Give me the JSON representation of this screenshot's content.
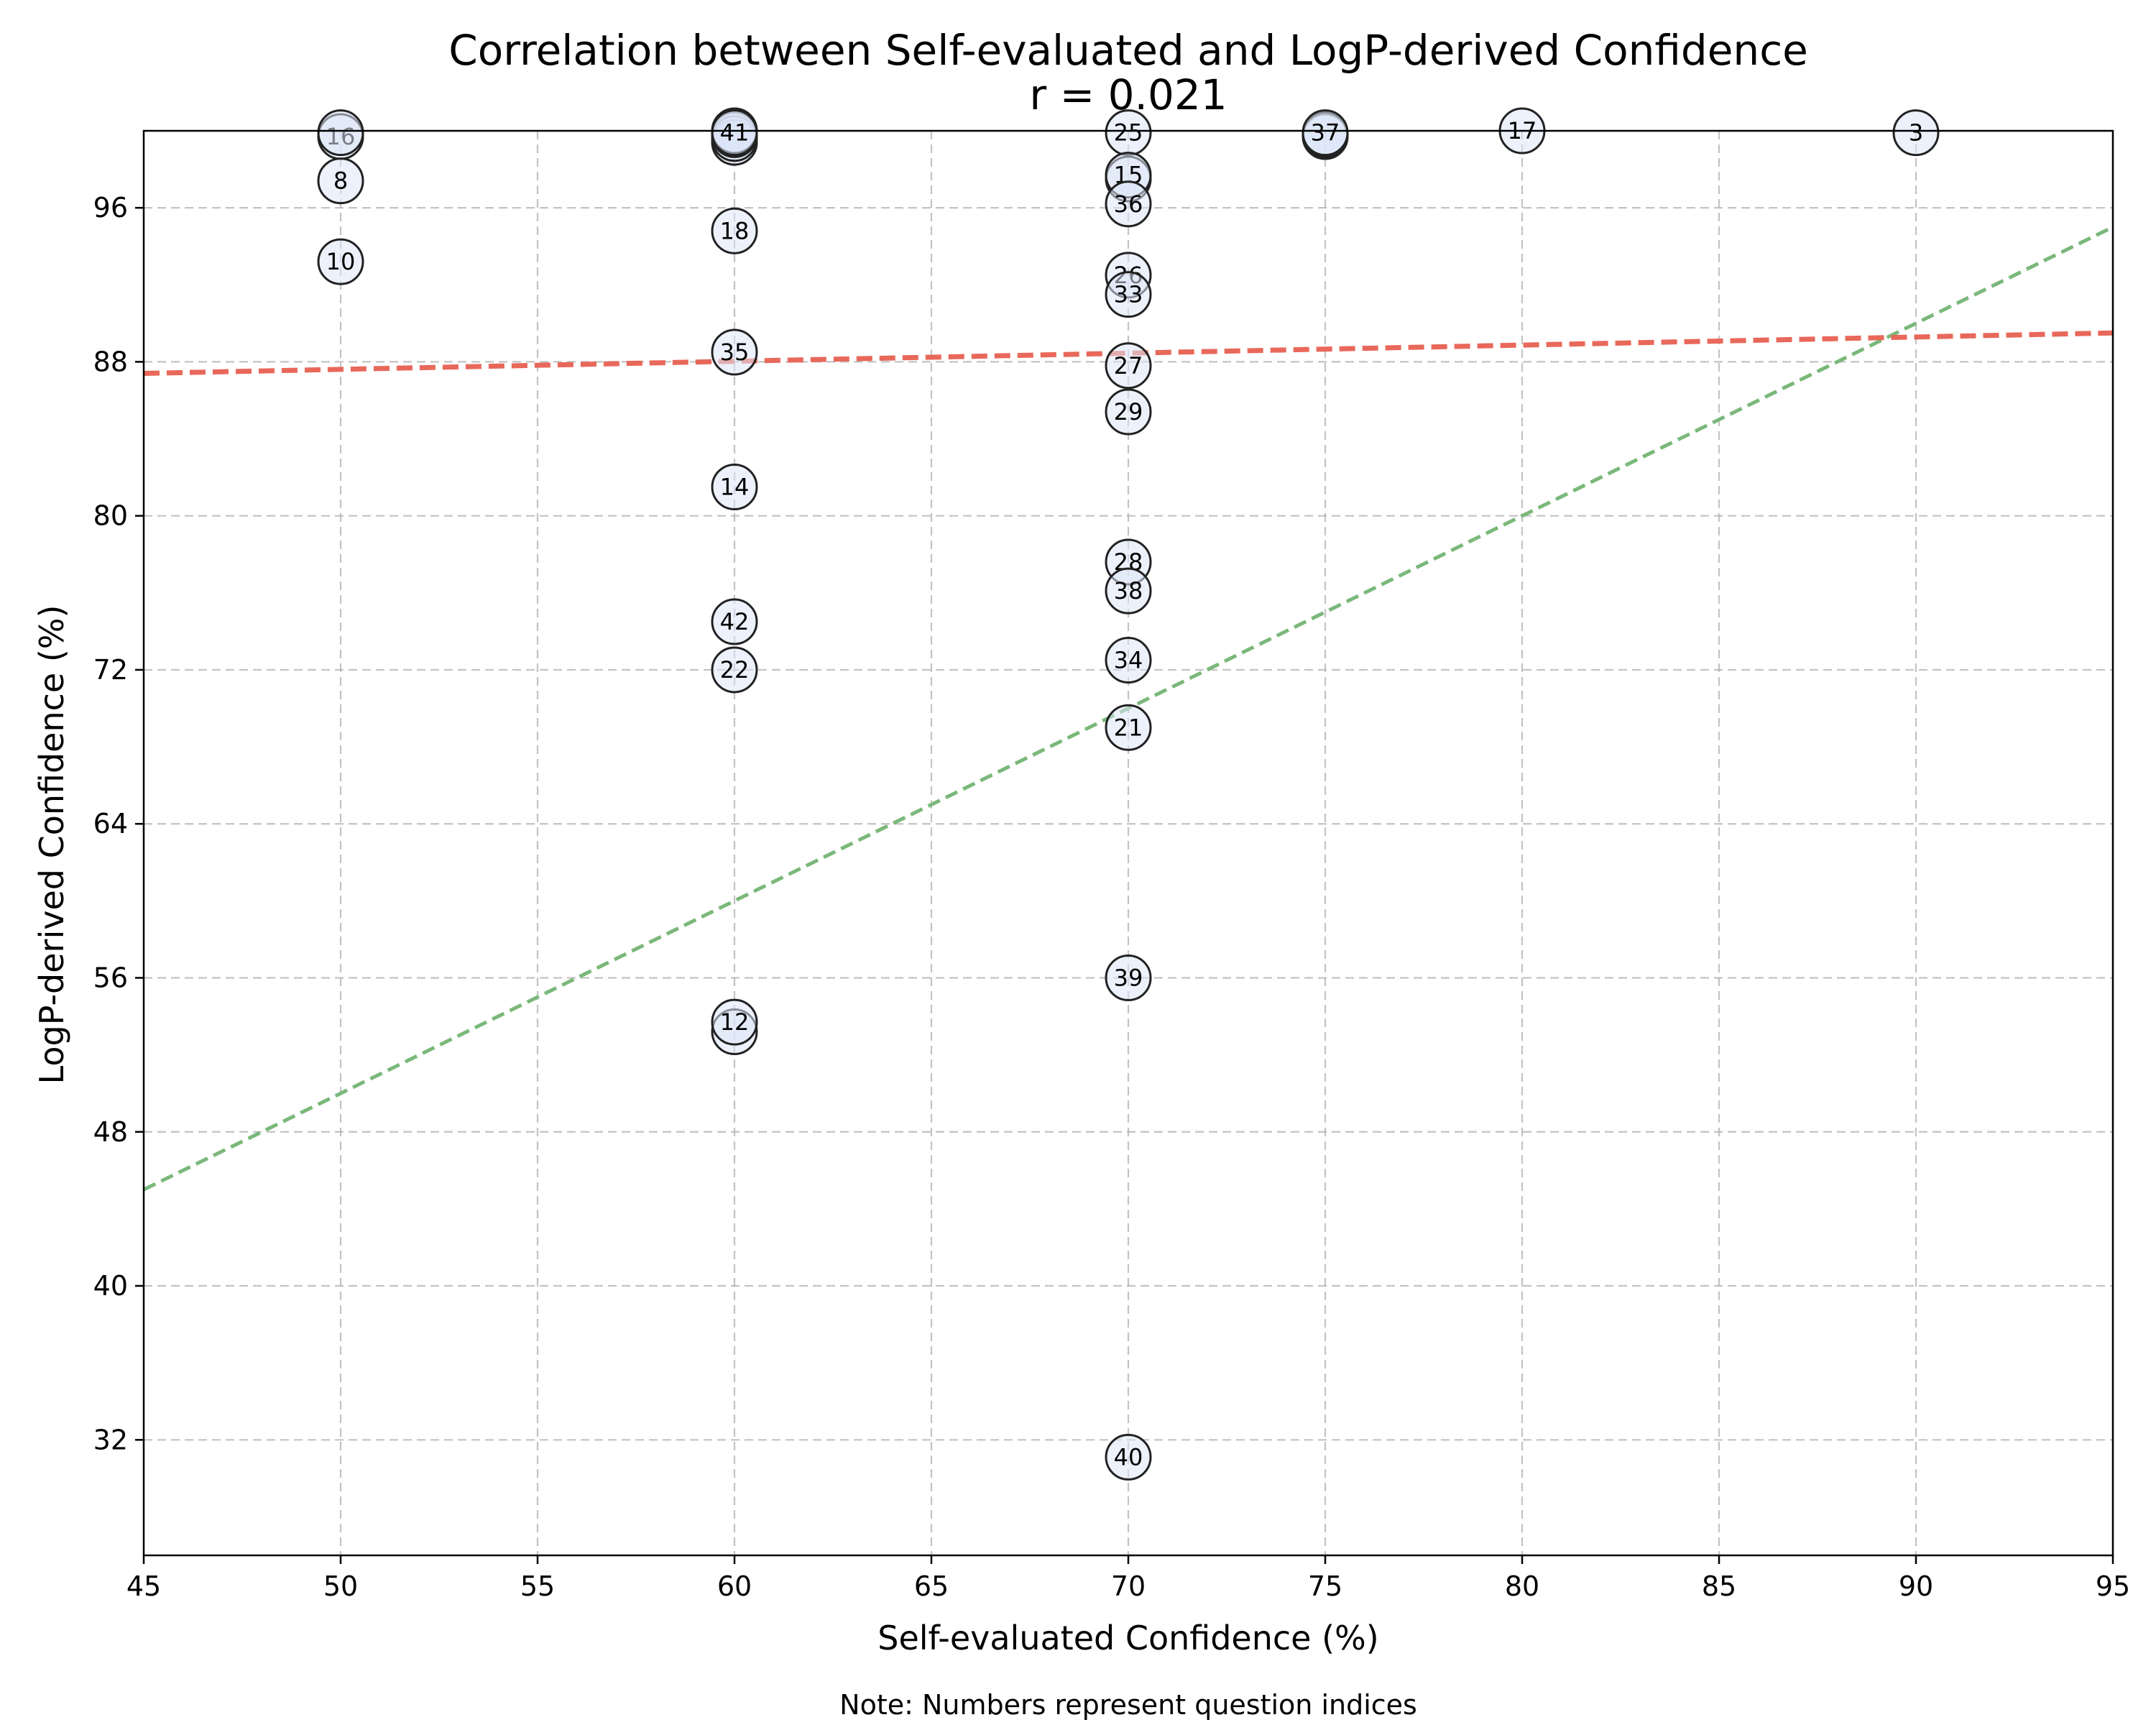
{
  "chart_data": {
    "type": "scatter",
    "title": "Correlation between Self-evaluated and LogP-derived Confidence",
    "subtitle": "r = 0.021",
    "xlabel": "Self-evaluated Confidence (%)",
    "ylabel": "LogP-derived Confidence (%)",
    "note": "Note: Numbers represent question indices",
    "xlim": [
      45,
      95
    ],
    "ylim": [
      26,
      100
    ],
    "xticks": [
      45,
      50,
      55,
      60,
      65,
      70,
      75,
      80,
      85,
      90,
      95
    ],
    "yticks": [
      32,
      40,
      48,
      56,
      64,
      72,
      80,
      88,
      96
    ],
    "grid": true,
    "colors": {
      "point_fill": "#dde6f7",
      "point_edge": "#222222",
      "trend_line": "#e8685a",
      "identity_line": "#7ab87a"
    },
    "trend_line": {
      "x": [
        45,
        95
      ],
      "y": [
        87.4,
        89.5
      ]
    },
    "identity_line": {
      "x": [
        45,
        95
      ],
      "y": [
        45,
        95
      ]
    },
    "points": [
      {
        "label": "16",
        "x": 50,
        "y": 99.7
      },
      {
        "label": "",
        "x": 50,
        "y": 99.9
      },
      {
        "label": "8",
        "x": 50,
        "y": 97.4
      },
      {
        "label": "10",
        "x": 50,
        "y": 93.2
      },
      {
        "label": "",
        "x": 60,
        "y": 99.4
      },
      {
        "label": "",
        "x": 60,
        "y": 99.6
      },
      {
        "label": "",
        "x": 60,
        "y": 99.8
      },
      {
        "label": "",
        "x": 60,
        "y": 100.0
      },
      {
        "label": "41",
        "x": 60,
        "y": 99.9
      },
      {
        "label": "18",
        "x": 60,
        "y": 94.8
      },
      {
        "label": "35",
        "x": 60,
        "y": 88.5
      },
      {
        "label": "14",
        "x": 60,
        "y": 81.5
      },
      {
        "label": "42",
        "x": 60,
        "y": 74.5
      },
      {
        "label": "22",
        "x": 60,
        "y": 72.0
      },
      {
        "label": "",
        "x": 60,
        "y": 53.2
      },
      {
        "label": "12",
        "x": 60,
        "y": 53.7
      },
      {
        "label": "25",
        "x": 70,
        "y": 99.9
      },
      {
        "label": "",
        "x": 70,
        "y": 97.5
      },
      {
        "label": "15",
        "x": 70,
        "y": 97.7
      },
      {
        "label": "36",
        "x": 70,
        "y": 96.2
      },
      {
        "label": "26",
        "x": 70,
        "y": 92.5
      },
      {
        "label": "33",
        "x": 70,
        "y": 91.5
      },
      {
        "label": "27",
        "x": 70,
        "y": 87.8
      },
      {
        "label": "29",
        "x": 70,
        "y": 85.4
      },
      {
        "label": "28",
        "x": 70,
        "y": 77.6
      },
      {
        "label": "38",
        "x": 70,
        "y": 76.1
      },
      {
        "label": "34",
        "x": 70,
        "y": 72.5
      },
      {
        "label": "21",
        "x": 70,
        "y": 69.0
      },
      {
        "label": "39",
        "x": 70,
        "y": 56.0
      },
      {
        "label": "40",
        "x": 70,
        "y": 31.1
      },
      {
        "label": "",
        "x": 75,
        "y": 99.7
      },
      {
        "label": "",
        "x": 75,
        "y": 99.8
      },
      {
        "label": "37",
        "x": 75,
        "y": 99.9
      },
      {
        "label": "17",
        "x": 80,
        "y": 100.0
      },
      {
        "label": "3",
        "x": 90,
        "y": 99.9
      }
    ]
  }
}
